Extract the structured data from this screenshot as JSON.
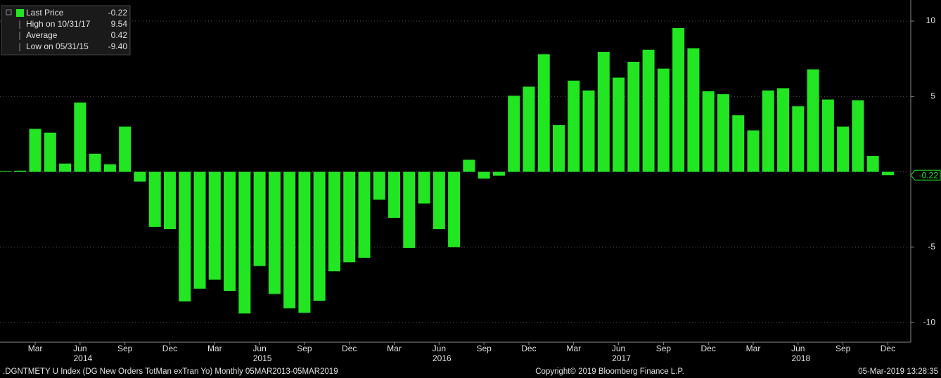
{
  "chart_data": {
    "type": "bar",
    "color": "#22e622",
    "categories": [
      null,
      null,
      "Mar",
      null,
      null,
      "Jun",
      null,
      null,
      "Sep",
      null,
      null,
      "Dec",
      null,
      null,
      "Mar",
      null,
      null,
      "Jun",
      null,
      null,
      "Sep",
      null,
      null,
      "Dec",
      null,
      null,
      "Mar",
      null,
      null,
      "Jun",
      null,
      null,
      "Sep",
      null,
      null,
      "Dec",
      null,
      null,
      "Mar",
      null,
      null,
      "Jun",
      null,
      null,
      "Sep",
      null,
      null,
      "Dec",
      null,
      null,
      "Mar",
      null,
      null,
      "Jun",
      null,
      null,
      "Sep",
      null,
      null,
      "Dec"
    ],
    "x_groups": [
      null,
      null,
      null,
      null,
      null,
      "2014",
      null,
      null,
      null,
      null,
      null,
      null,
      null,
      null,
      null,
      null,
      null,
      "2015",
      null,
      null,
      null,
      null,
      null,
      null,
      null,
      null,
      null,
      null,
      null,
      "2016",
      null,
      null,
      null,
      null,
      null,
      null,
      null,
      null,
      null,
      null,
      null,
      "2017",
      null,
      null,
      null,
      null,
      null,
      null,
      null,
      null,
      null,
      null,
      null,
      "2018",
      null,
      null,
      null,
      null,
      null,
      null
    ],
    "values": [
      0.05,
      0.08,
      2.85,
      2.6,
      0.55,
      4.6,
      1.2,
      0.5,
      3.0,
      -0.65,
      -3.65,
      -3.8,
      -8.6,
      -7.75,
      -7.15,
      -7.9,
      -9.4,
      -6.25,
      -8.1,
      -9.05,
      -9.35,
      -8.55,
      -6.6,
      -6.0,
      -5.7,
      -1.85,
      -3.05,
      -5.05,
      -2.1,
      -3.8,
      -5.0,
      0.8,
      -0.45,
      -0.25,
      5.05,
      5.65,
      7.8,
      3.1,
      6.05,
      5.4,
      7.95,
      6.25,
      7.3,
      8.1,
      6.85,
      9.54,
      8.2,
      5.35,
      5.15,
      3.75,
      2.75,
      5.4,
      5.55,
      4.35,
      6.8,
      4.8,
      3.0,
      4.75,
      1.05,
      -0.22
    ],
    "ylim": [
      -11.3,
      11.4
    ],
    "yticks": [
      -10,
      -5,
      5,
      10
    ],
    "grid": true,
    "last_value": -0.22,
    "legend": [
      {
        "label": "Last Price",
        "value": -0.22
      },
      {
        "label": "High on 10/31/17",
        "value": 9.54
      },
      {
        "label": "Average",
        "value": 0.42
      },
      {
        "label": "Low on 05/31/15",
        "value": -9.4,
        "value_label": "-9.40"
      }
    ],
    "footer": {
      "left": ".DGNTMETY U Index (DG New Orders TotMan exTran Yo)  Monthly 05MAR2013-05MAR2019",
      "center": "Copyright© 2019 Bloomberg Finance L.P.",
      "right": "05-Mar-2019 13:28:35"
    }
  }
}
